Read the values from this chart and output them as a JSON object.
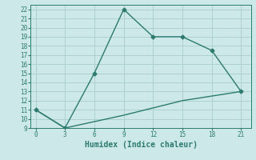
{
  "xlabel": "Humidex (Indice chaleur)",
  "background_color": "#cce8e8",
  "grid_color": "#aacccc",
  "line_color": "#2d7a6e",
  "line1_x": [
    0,
    3,
    6,
    9,
    12,
    15,
    18,
    21
  ],
  "line1_y": [
    11,
    9,
    15,
    22,
    19,
    19,
    17.5,
    13
  ],
  "line2_x": [
    0,
    3,
    6,
    9,
    12,
    15,
    18,
    21
  ],
  "line2_y": [
    11,
    9,
    9.7,
    10.4,
    11.2,
    12.0,
    12.5,
    13
  ],
  "xlim": [
    -0.5,
    22
  ],
  "ylim": [
    9,
    22.5
  ],
  "xticks": [
    0,
    3,
    6,
    9,
    12,
    15,
    18,
    21
  ],
  "yticks": [
    9,
    10,
    11,
    12,
    13,
    14,
    15,
    16,
    17,
    18,
    19,
    20,
    21,
    22
  ],
  "marker": "D",
  "markersize": 2.5,
  "linewidth": 1.0
}
